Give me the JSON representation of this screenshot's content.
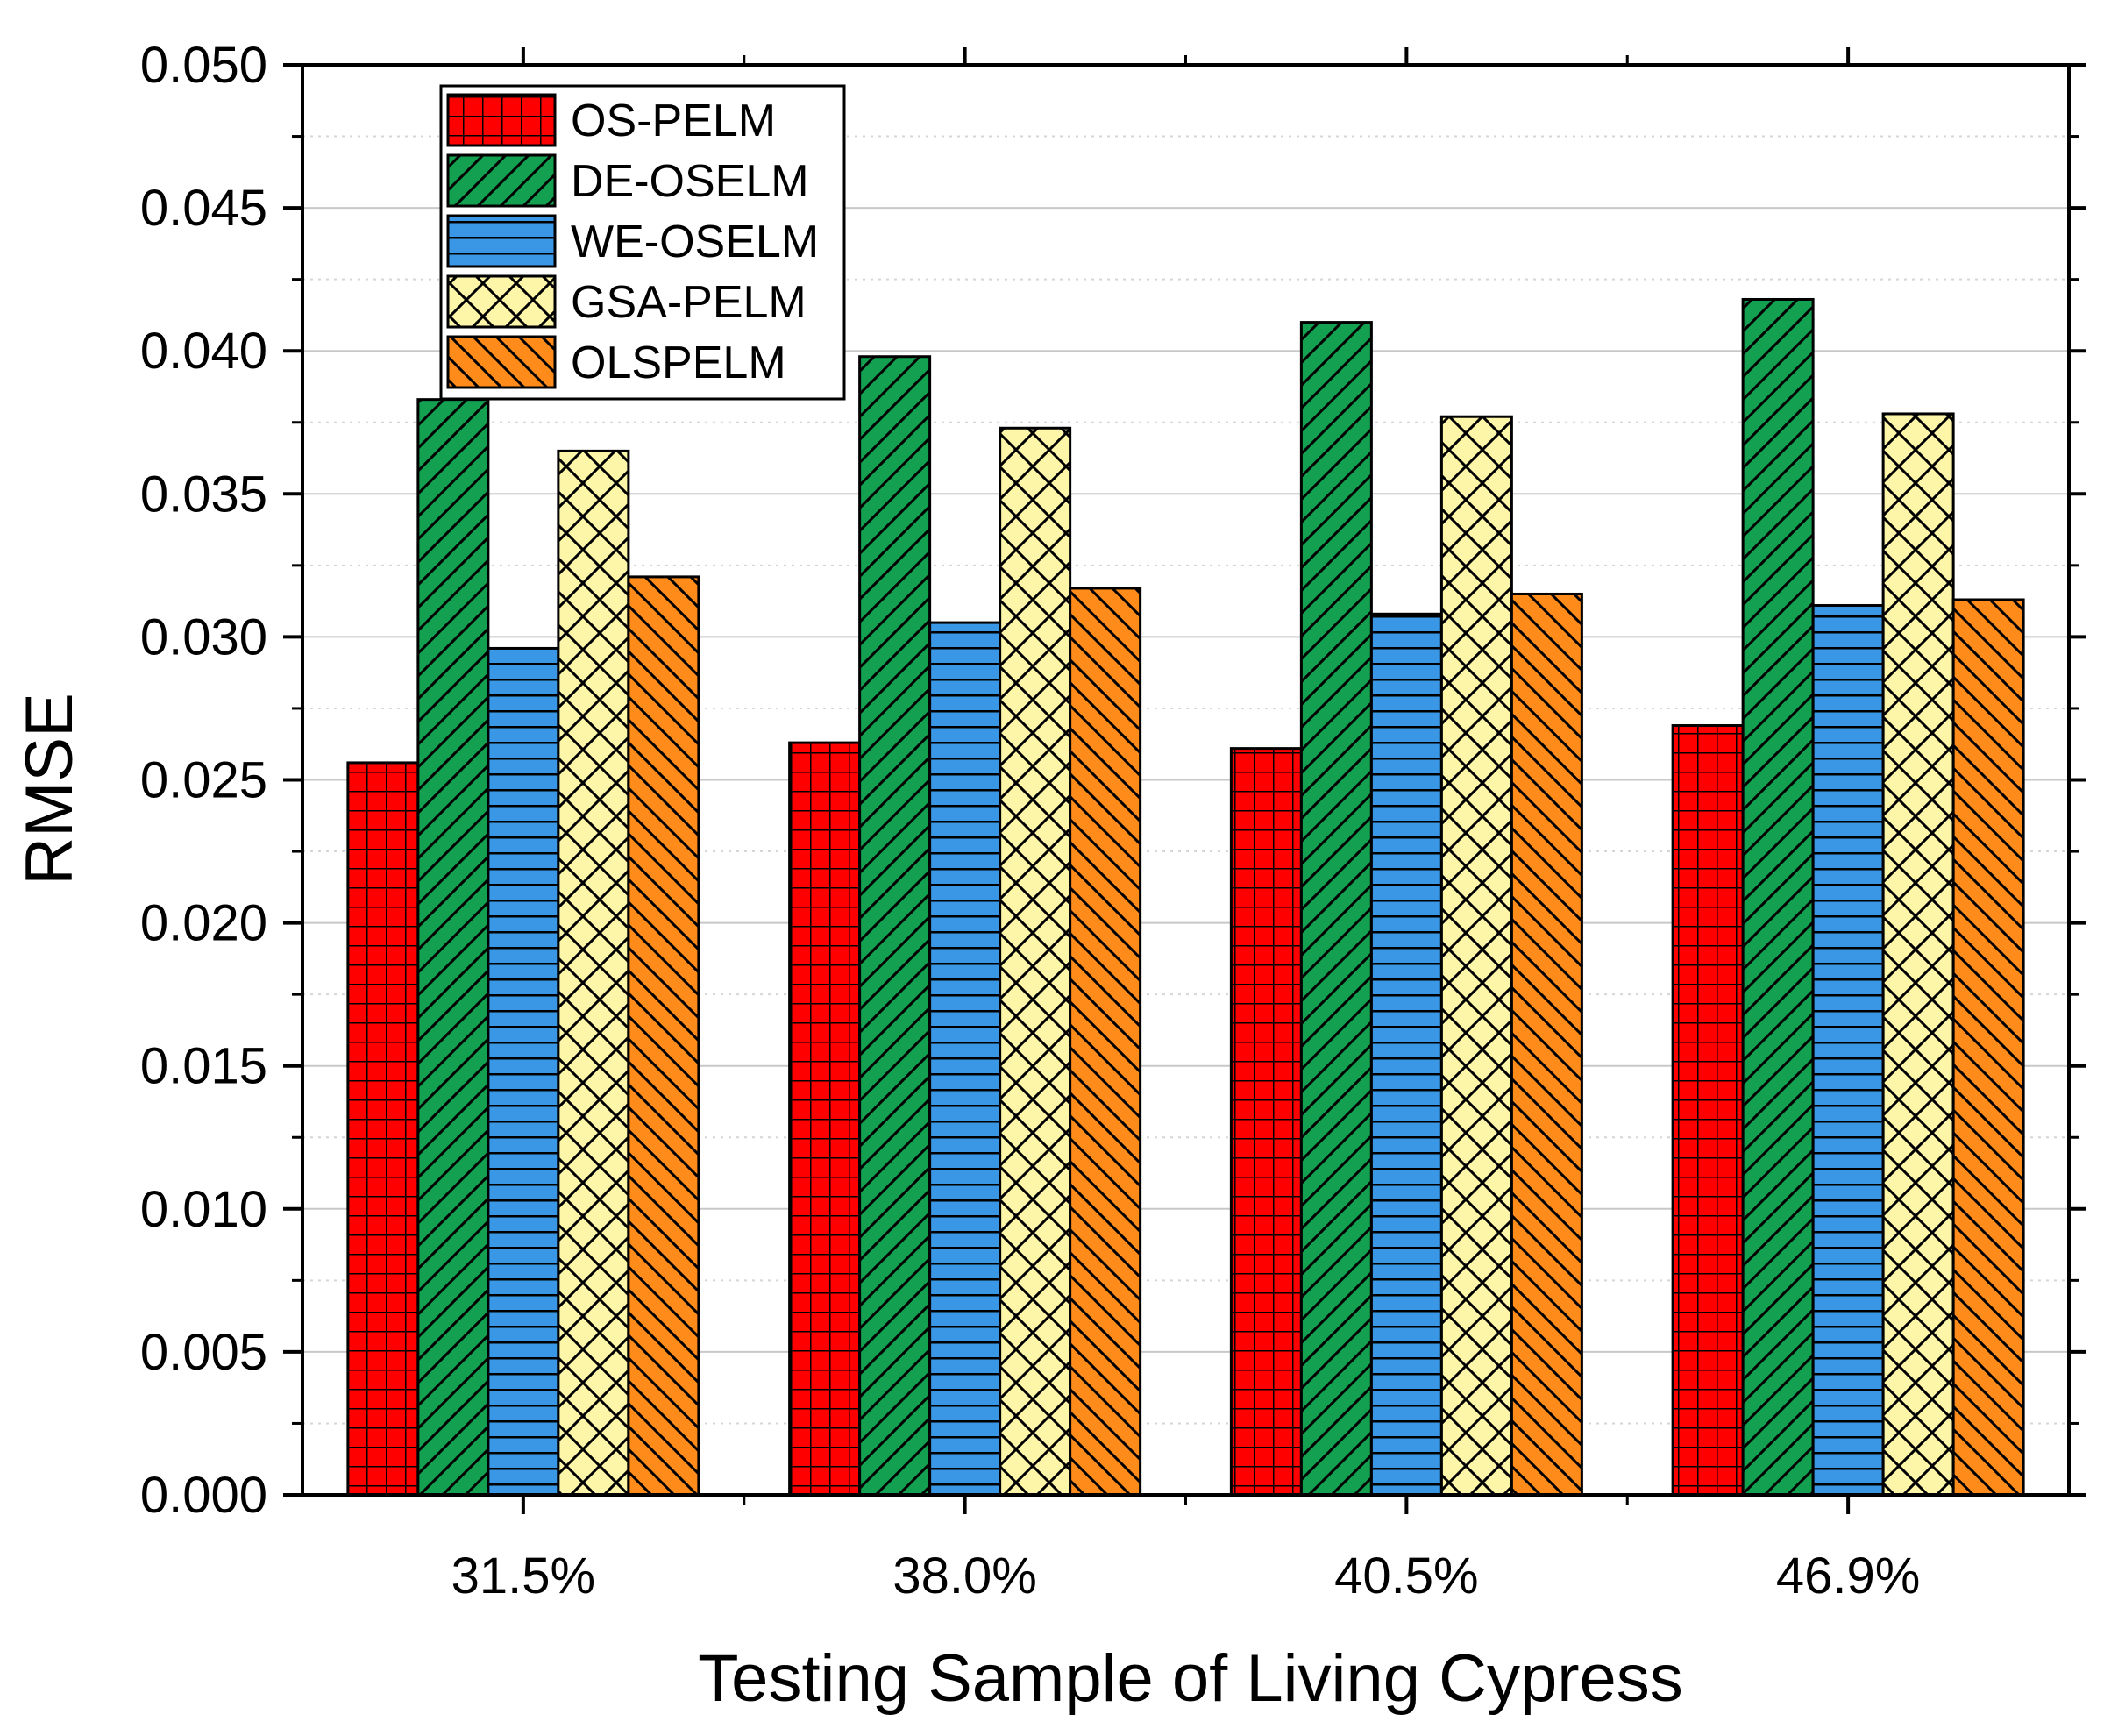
{
  "chart_data": {
    "type": "bar",
    "title": "",
    "xlabel": "Testing Sample of Living Cypress",
    "ylabel": "RMSE",
    "categories": [
      "31.5%",
      "38.0%",
      "40.5%",
      "46.9%"
    ],
    "ylim": [
      0,
      0.05
    ],
    "yticks": [
      "0.000",
      "0.005",
      "0.010",
      "0.015",
      "0.020",
      "0.025",
      "0.030",
      "0.035",
      "0.040",
      "0.045",
      "0.050"
    ],
    "grid": true,
    "legend_position": "top-left",
    "series": [
      {
        "name": "OS-PELM",
        "color": "#ff0000",
        "pattern": "grid",
        "values": [
          0.0256,
          0.0263,
          0.0261,
          0.0269
        ]
      },
      {
        "name": "DE-OSELM",
        "color": "#13a050",
        "pattern": "diagonal-up",
        "values": [
          0.0383,
          0.0398,
          0.041,
          0.0418
        ]
      },
      {
        "name": "WE-OSELM",
        "color": "#3a97e6",
        "pattern": "horizontal",
        "values": [
          0.0296,
          0.0305,
          0.0308,
          0.0311
        ]
      },
      {
        "name": "GSA-PELM",
        "color": "#fdf6a8",
        "pattern": "crosshatch",
        "values": [
          0.0365,
          0.0373,
          0.0377,
          0.0378
        ]
      },
      {
        "name": "OLSPELM",
        "color": "#ff8c1a",
        "pattern": "diagonal-down",
        "values": [
          0.0321,
          0.0317,
          0.0315,
          0.0313
        ]
      }
    ]
  }
}
